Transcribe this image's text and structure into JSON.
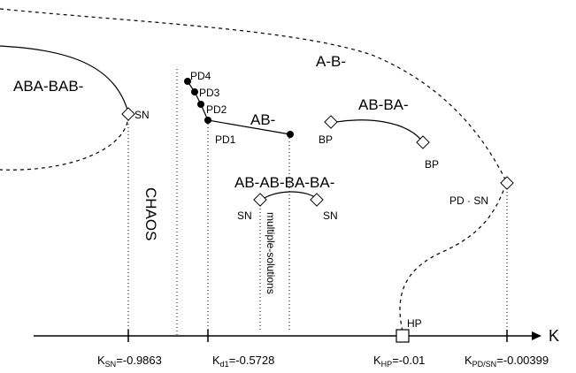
{
  "labels": {
    "aba_bab": "ABA-BAB-",
    "a_b": "A-B-",
    "ab": "AB-",
    "ab_ba": "AB-BA-",
    "abab_baba": "AB-AB-BA-BA-",
    "chaos": "CHAOS",
    "multiple_solutions": "multiple-solutions",
    "pd1": "PD1",
    "pd2": "PD2",
    "pd3": "PD3",
    "pd4": "PD4",
    "sn": "SN",
    "bp": "BP",
    "pd_sn": "PD · SN",
    "hp": "HP",
    "axis_k": "K"
  },
  "axis_ticks": {
    "k_sn": {
      "sym": "K",
      "sub": "SN",
      "val": "=-0.9863"
    },
    "k_d1": {
      "sym": "K",
      "sub": "d1",
      "val": "=-0.5728"
    },
    "k_hp": {
      "sym": "K",
      "sub": "HP",
      "val": "=-0.01"
    },
    "k_pdsn": {
      "sym": "K",
      "sub": "PD/SN",
      "val": "=-0.00399"
    }
  }
}
